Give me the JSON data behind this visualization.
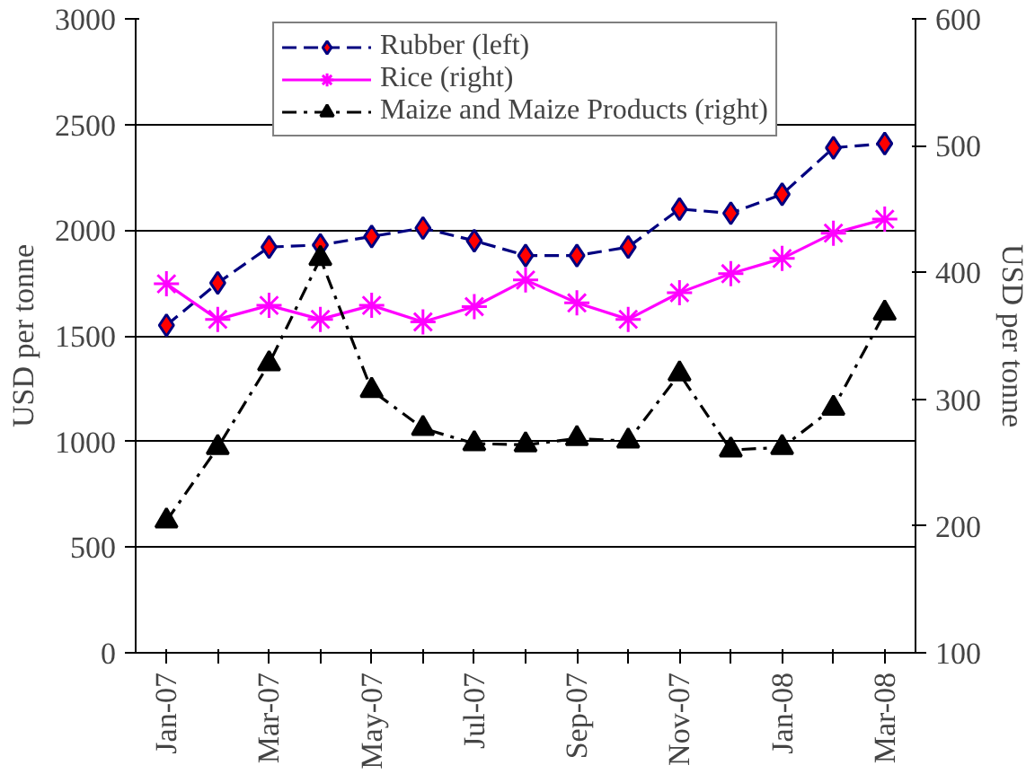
{
  "chart_data": {
    "type": "line",
    "ylabel": "USD per tonne",
    "y2label": "USD per tonne",
    "categories": [
      "Jan-07",
      null,
      "Mar-07",
      null,
      "May-07",
      null,
      "Jul-07",
      null,
      "Sep-07",
      null,
      "Nov-07",
      null,
      "Jan-08",
      null,
      "Mar-08"
    ],
    "ylim": [
      0,
      3000
    ],
    "yticks": [
      0,
      500,
      1000,
      1500,
      2000,
      2500,
      3000
    ],
    "y2lim": [
      100,
      600
    ],
    "y2ticks": [
      100,
      200,
      300,
      400,
      500,
      600
    ],
    "grid": "y",
    "legend": "top",
    "series": [
      {
        "name": "Rubber (left)",
        "color": "#000080",
        "marker": "diamond",
        "line_style": "dashed",
        "values": [
          1550,
          1750,
          1920,
          1930,
          1970,
          2010,
          1950,
          1880,
          1880,
          1920,
          2100,
          2080,
          2170,
          2390,
          2410
        ]
      },
      {
        "name": "Rice (right)",
        "color": "#ff00ff",
        "marker": "cross",
        "line_style": "solid",
        "axis": "y2",
        "values": [
          391,
          363,
          374,
          363,
          374,
          361,
          373,
          394,
          376,
          363,
          384,
          399,
          411,
          431,
          442
        ]
      },
      {
        "name": "Maize and Maize Products (right)",
        "color": "#000000",
        "marker": "triangle",
        "line_style": "dotted",
        "axis": "y2",
        "values": [
          204,
          262,
          328,
          411,
          307,
          277,
          265,
          264,
          269,
          267,
          320,
          260,
          262,
          293,
          368
        ]
      }
    ]
  }
}
